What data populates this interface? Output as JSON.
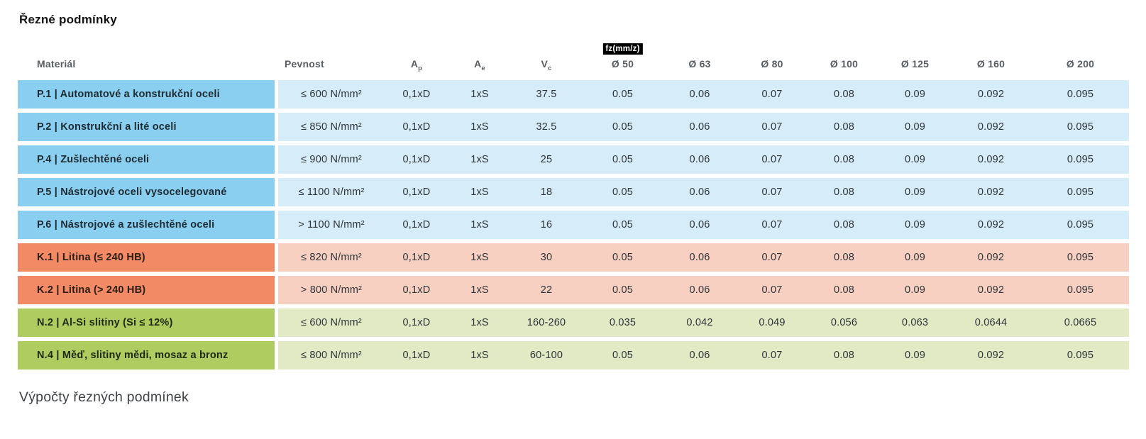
{
  "title": "Řezné podmínky",
  "section_footer": "Výpočty řezných podmínek",
  "colors": {
    "steel_header": "#8bcff0",
    "steel_cell": "#d6ecf8",
    "cast_iron_header": "#f28b65",
    "cast_iron_cell": "#f8d0c2",
    "nonferrous_header": "#aecc5f",
    "nonferrous_cell": "#e1eac5",
    "badge_bg": "#000000",
    "badge_text": "#ffffff"
  },
  "table": {
    "columns": [
      {
        "id": "material",
        "label": "Materiál"
      },
      {
        "id": "pevnost",
        "label": "Pevnost"
      },
      {
        "id": "ap",
        "label": "A",
        "sub": "p"
      },
      {
        "id": "ae",
        "label": "A",
        "sub": "e"
      },
      {
        "id": "vc",
        "label": "V",
        "sub": "c"
      },
      {
        "id": "d50",
        "label": "Ø 50",
        "badge": "fz(mm/z)"
      },
      {
        "id": "d63",
        "label": "Ø 63"
      },
      {
        "id": "d80",
        "label": "Ø 80"
      },
      {
        "id": "d100",
        "label": "Ø 100"
      },
      {
        "id": "d125",
        "label": "Ø 125"
      },
      {
        "id": "d160",
        "label": "Ø 160"
      },
      {
        "id": "d200",
        "label": "Ø 200"
      }
    ],
    "rows": [
      {
        "group": "steel",
        "material": "P.1 | Automatové a konstrukční oceli",
        "pevnost": "≤ 600 N/mm²",
        "ap": "0,1xD",
        "ae": "1xS",
        "vc": "37.5",
        "fz": [
          "0.05",
          "0.06",
          "0.07",
          "0.08",
          "0.09",
          "0.092",
          "0.095"
        ]
      },
      {
        "group": "steel",
        "material": "P.2 | Konstrukční a lité oceli",
        "pevnost": "≤ 850 N/mm²",
        "ap": "0,1xD",
        "ae": "1xS",
        "vc": "32.5",
        "fz": [
          "0.05",
          "0.06",
          "0.07",
          "0.08",
          "0.09",
          "0.092",
          "0.095"
        ]
      },
      {
        "group": "steel",
        "material": "P.4 | Zušlechtěné oceli",
        "pevnost": "≤ 900 N/mm²",
        "ap": "0,1xD",
        "ae": "1xS",
        "vc": "25",
        "fz": [
          "0.05",
          "0.06",
          "0.07",
          "0.08",
          "0.09",
          "0.092",
          "0.095"
        ]
      },
      {
        "group": "steel",
        "material": "P.5 | Nástrojové oceli vysocelegované",
        "pevnost": "≤ 1100 N/mm²",
        "ap": "0,1xD",
        "ae": "1xS",
        "vc": "18",
        "fz": [
          "0.05",
          "0.06",
          "0.07",
          "0.08",
          "0.09",
          "0.092",
          "0.095"
        ]
      },
      {
        "group": "steel",
        "material": "P.6 | Nástrojové a zušlechtěné oceli",
        "pevnost": "> 1100 N/mm²",
        "ap": "0,1xD",
        "ae": "1xS",
        "vc": "16",
        "fz": [
          "0.05",
          "0.06",
          "0.07",
          "0.08",
          "0.09",
          "0.092",
          "0.095"
        ]
      },
      {
        "group": "cast-iron",
        "material": "K.1 | Litina (≤ 240 HB)",
        "pevnost": "≤ 820 N/mm²",
        "ap": "0,1xD",
        "ae": "1xS",
        "vc": "30",
        "fz": [
          "0.05",
          "0.06",
          "0.07",
          "0.08",
          "0.09",
          "0.092",
          "0.095"
        ]
      },
      {
        "group": "cast-iron",
        "material": "K.2 | Litina (> 240 HB)",
        "pevnost": "> 800 N/mm²",
        "ap": "0,1xD",
        "ae": "1xS",
        "vc": "22",
        "fz": [
          "0.05",
          "0.06",
          "0.07",
          "0.08",
          "0.09",
          "0.092",
          "0.095"
        ]
      },
      {
        "group": "nonferrous",
        "material": "N.2 | Al-Si slitiny (Si ≤ 12%)",
        "pevnost": "≤ 600 N/mm²",
        "ap": "0,1xD",
        "ae": "1xS",
        "vc": "160-260",
        "fz": [
          "0.035",
          "0.042",
          "0.049",
          "0.056",
          "0.063",
          "0.0644",
          "0.0665"
        ]
      },
      {
        "group": "nonferrous",
        "material": "N.4 | Měď, slitiny mědi, mosaz a bronz",
        "pevnost": "≤ 800 N/mm²",
        "ap": "0,1xD",
        "ae": "1xS",
        "vc": "60-100",
        "fz": [
          "0.05",
          "0.06",
          "0.07",
          "0.08",
          "0.09",
          "0.092",
          "0.095"
        ]
      }
    ]
  }
}
